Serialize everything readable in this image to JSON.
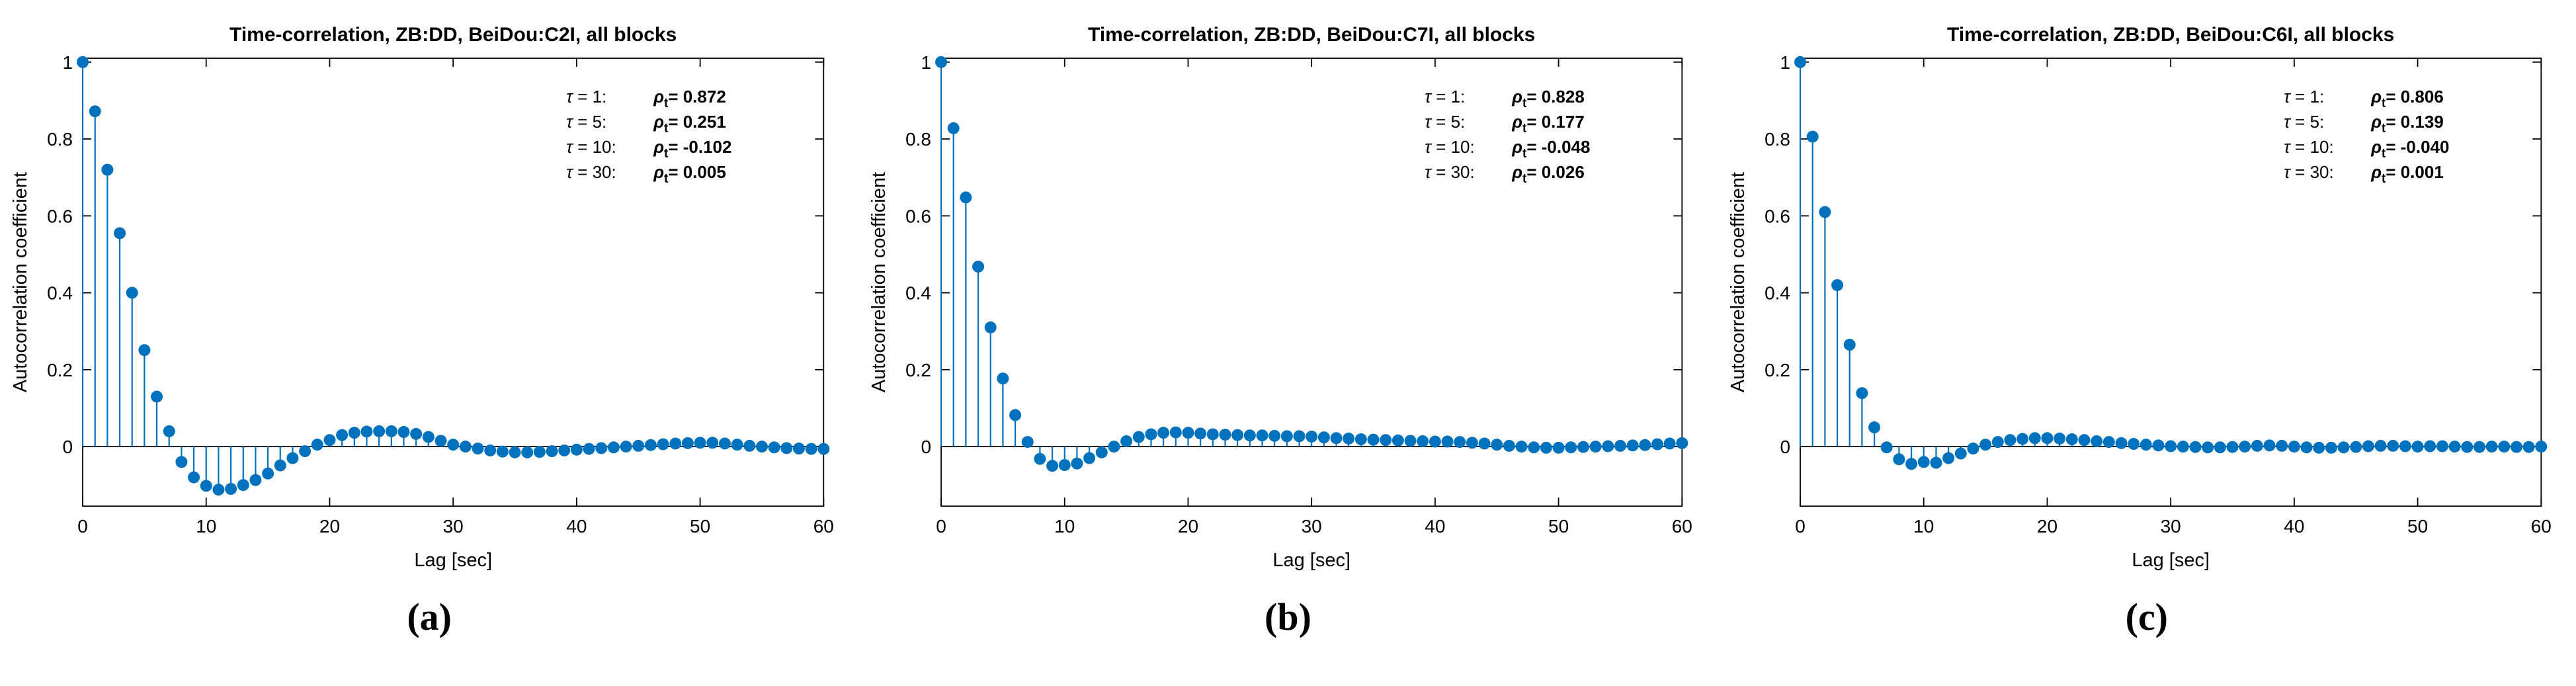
{
  "figure": {
    "background": "#ffffff",
    "stem_color": "#0072BD",
    "axis_color": "#000000",
    "text_color": "#000000"
  },
  "chart_data": [
    {
      "type": "stem",
      "title": "Time-correlation, ZB:DD, BeiDou:C2I, all blocks",
      "xlabel": "Lag [sec]",
      "ylabel": "Autocorrelation coefficient",
      "caption": "(a)",
      "xlim": [
        0,
        60
      ],
      "ylim": [
        -0.155,
        1.01
      ],
      "xticks": [
        0,
        10,
        20,
        30,
        40,
        50,
        60
      ],
      "yticks": [
        0,
        0.2,
        0.4,
        0.6,
        0.8,
        1
      ],
      "ytick_labels": [
        "0",
        "0.2",
        "0.4",
        "0.6",
        "0.8",
        "1"
      ],
      "grid": false,
      "legend": "none",
      "annotation": {
        "rho_symbol": "ρ",
        "rho_subscript": "t",
        "rows": [
          {
            "tau": "τ = 1:",
            "value": "0.872"
          },
          {
            "tau": "τ = 5:",
            "value": "0.251"
          },
          {
            "tau": "τ = 10:",
            "value": "-0.102"
          },
          {
            "tau": "τ = 30:",
            "value": "0.005"
          }
        ]
      },
      "x": [
        0,
        1,
        2,
        3,
        4,
        5,
        6,
        7,
        8,
        9,
        10,
        11,
        12,
        13,
        14,
        15,
        16,
        17,
        18,
        19,
        20,
        21,
        22,
        23,
        24,
        25,
        26,
        27,
        28,
        29,
        30,
        31,
        32,
        33,
        34,
        35,
        36,
        37,
        38,
        39,
        40,
        41,
        42,
        43,
        44,
        45,
        46,
        47,
        48,
        49,
        50,
        51,
        52,
        53,
        54,
        55,
        56,
        57,
        58,
        59,
        60
      ],
      "y": [
        1.0,
        0.872,
        0.72,
        0.555,
        0.4,
        0.251,
        0.13,
        0.04,
        -0.04,
        -0.08,
        -0.102,
        -0.112,
        -0.11,
        -0.1,
        -0.087,
        -0.07,
        -0.049,
        -0.03,
        -0.012,
        0.005,
        0.017,
        0.03,
        0.036,
        0.039,
        0.04,
        0.04,
        0.038,
        0.033,
        0.025,
        0.015,
        0.005,
        0.0,
        -0.005,
        -0.01,
        -0.013,
        -0.015,
        -0.015,
        -0.014,
        -0.012,
        -0.01,
        -0.008,
        -0.006,
        -0.004,
        -0.002,
        0.0,
        0.002,
        0.004,
        0.006,
        0.008,
        0.009,
        0.01,
        0.01,
        0.008,
        0.005,
        0.002,
        0.0,
        -0.002,
        -0.004,
        -0.005,
        -0.006,
        -0.006
      ]
    },
    {
      "type": "stem",
      "title": "Time-correlation, ZB:DD, BeiDou:C7I, all blocks",
      "xlabel": "Lag [sec]",
      "ylabel": "Autocorrelation coefficient",
      "caption": "(b)",
      "xlim": [
        0,
        60
      ],
      "ylim": [
        -0.155,
        1.01
      ],
      "xticks": [
        0,
        10,
        20,
        30,
        40,
        50,
        60
      ],
      "yticks": [
        0,
        0.2,
        0.4,
        0.6,
        0.8,
        1
      ],
      "ytick_labels": [
        "0",
        "0.2",
        "0.4",
        "0.6",
        "0.8",
        "1"
      ],
      "grid": false,
      "legend": "none",
      "annotation": {
        "rho_symbol": "ρ",
        "rho_subscript": "t",
        "rows": [
          {
            "tau": "τ = 1:",
            "value": "0.828"
          },
          {
            "tau": "τ = 5:",
            "value": "0.177"
          },
          {
            "tau": "τ = 10:",
            "value": "-0.048"
          },
          {
            "tau": "τ = 30:",
            "value": "0.026"
          }
        ]
      },
      "x": [
        0,
        1,
        2,
        3,
        4,
        5,
        6,
        7,
        8,
        9,
        10,
        11,
        12,
        13,
        14,
        15,
        16,
        17,
        18,
        19,
        20,
        21,
        22,
        23,
        24,
        25,
        26,
        27,
        28,
        29,
        30,
        31,
        32,
        33,
        34,
        35,
        36,
        37,
        38,
        39,
        40,
        41,
        42,
        43,
        44,
        45,
        46,
        47,
        48,
        49,
        50,
        51,
        52,
        53,
        54,
        55,
        56,
        57,
        58,
        59,
        60
      ],
      "y": [
        1.0,
        0.828,
        0.648,
        0.468,
        0.31,
        0.177,
        0.082,
        0.012,
        -0.032,
        -0.05,
        -0.048,
        -0.044,
        -0.03,
        -0.015,
        0.0,
        0.014,
        0.025,
        0.032,
        0.036,
        0.037,
        0.036,
        0.034,
        0.032,
        0.031,
        0.03,
        0.029,
        0.029,
        0.028,
        0.027,
        0.027,
        0.026,
        0.024,
        0.022,
        0.021,
        0.019,
        0.018,
        0.017,
        0.016,
        0.015,
        0.014,
        0.013,
        0.013,
        0.012,
        0.01,
        0.008,
        0.005,
        0.002,
        0.0,
        -0.002,
        -0.003,
        -0.003,
        -0.002,
        -0.001,
        0.0,
        0.001,
        0.002,
        0.003,
        0.004,
        0.006,
        0.008,
        0.009
      ]
    },
    {
      "type": "stem",
      "title": "Time-correlation, ZB:DD, BeiDou:C6I, all blocks",
      "xlabel": "Lag [sec]",
      "ylabel": "Autocorrelation coefficient",
      "caption": "(c)",
      "xlim": [
        0,
        60
      ],
      "ylim": [
        -0.155,
        1.01
      ],
      "xticks": [
        0,
        10,
        20,
        30,
        40,
        50,
        60
      ],
      "yticks": [
        0,
        0.2,
        0.4,
        0.6,
        0.8,
        1
      ],
      "ytick_labels": [
        "0",
        "0.2",
        "0.4",
        "0.6",
        "0.8",
        "1"
      ],
      "grid": false,
      "legend": "none",
      "annotation": {
        "rho_symbol": "ρ",
        "rho_subscript": "t",
        "rows": [
          {
            "tau": "τ = 1:",
            "value": "0.806"
          },
          {
            "tau": "τ = 5:",
            "value": "0.139"
          },
          {
            "tau": "τ = 10:",
            "value": "-0.040"
          },
          {
            "tau": "τ = 30:",
            "value": "0.001"
          }
        ]
      },
      "x": [
        0,
        1,
        2,
        3,
        4,
        5,
        6,
        7,
        8,
        9,
        10,
        11,
        12,
        13,
        14,
        15,
        16,
        17,
        18,
        19,
        20,
        21,
        22,
        23,
        24,
        25,
        26,
        27,
        28,
        29,
        30,
        31,
        32,
        33,
        34,
        35,
        36,
        37,
        38,
        39,
        40,
        41,
        42,
        43,
        44,
        45,
        46,
        47,
        48,
        49,
        50,
        51,
        52,
        53,
        54,
        55,
        56,
        57,
        58,
        59,
        60
      ],
      "y": [
        1.0,
        0.806,
        0.61,
        0.42,
        0.265,
        0.139,
        0.05,
        -0.002,
        -0.033,
        -0.045,
        -0.04,
        -0.042,
        -0.03,
        -0.018,
        -0.005,
        0.005,
        0.012,
        0.017,
        0.02,
        0.022,
        0.022,
        0.021,
        0.019,
        0.017,
        0.014,
        0.012,
        0.009,
        0.007,
        0.005,
        0.003,
        0.001,
        0.0,
        -0.001,
        -0.002,
        -0.002,
        -0.001,
        0.0,
        0.002,
        0.003,
        0.002,
        0.0,
        -0.002,
        -0.003,
        -0.003,
        -0.002,
        -0.001,
        0.001,
        0.002,
        0.002,
        0.001,
        0.0,
        0.001,
        0.001,
        0.0,
        -0.001,
        -0.001,
        0.0,
        0.0,
        -0.001,
        -0.001,
        0.0
      ]
    }
  ]
}
